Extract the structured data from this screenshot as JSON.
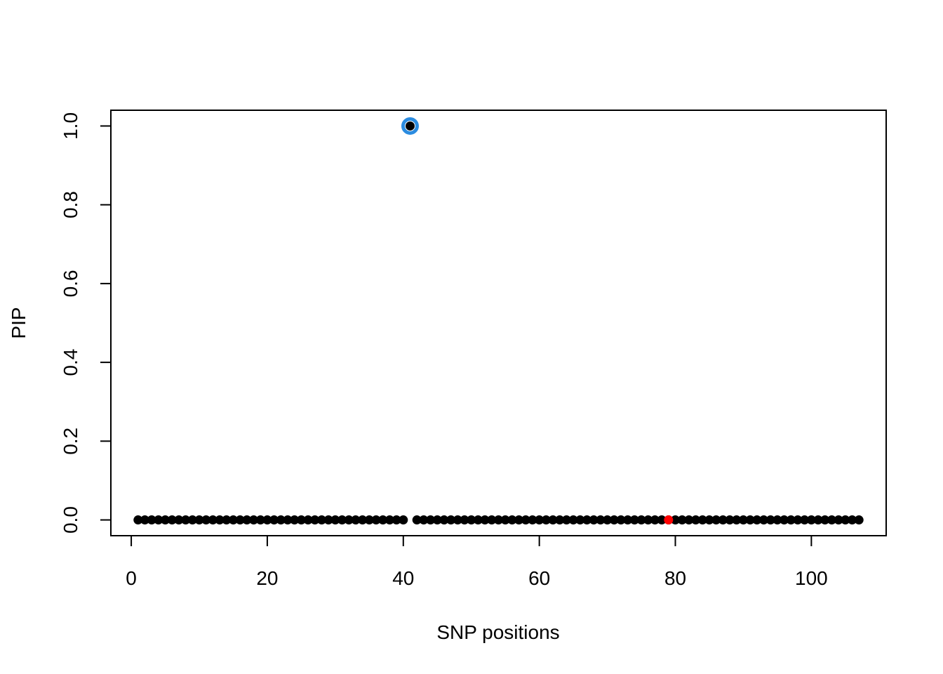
{
  "chart_data": {
    "type": "scatter",
    "title": "",
    "xlabel": "SNP positions",
    "ylabel": "PIP",
    "xlim": [
      -3,
      111
    ],
    "ylim": [
      -0.04,
      1.04
    ],
    "x_ticks": [
      0,
      20,
      40,
      60,
      80,
      100
    ],
    "y_ticks": [
      0.0,
      0.2,
      0.4,
      0.6,
      0.8,
      1.0
    ],
    "x_tick_labels": [
      "0",
      "20",
      "40",
      "60",
      "80",
      "100"
    ],
    "y_tick_labels": [
      "0.0",
      "0.2",
      "0.4",
      "0.6",
      "0.8",
      "1.0"
    ],
    "grid": false,
    "legend": "none",
    "x_start": 1,
    "x_end": 107,
    "y_values": [
      0,
      0,
      0,
      0,
      0,
      0,
      0,
      0,
      0,
      0,
      0,
      0,
      0,
      0,
      0,
      0,
      0,
      0,
      0,
      0,
      0,
      0,
      0,
      0,
      0,
      0,
      0,
      0,
      0,
      0,
      0,
      0,
      0,
      0,
      0,
      0,
      0,
      0,
      0,
      0,
      1,
      0,
      0,
      0,
      0,
      0,
      0,
      0,
      0,
      0,
      0,
      0,
      0,
      0,
      0,
      0,
      0,
      0,
      0,
      0,
      0,
      0,
      0,
      0,
      0,
      0,
      0,
      0,
      0,
      0,
      0,
      0,
      0,
      0,
      0,
      0,
      0,
      0,
      0,
      0,
      0,
      0,
      0,
      0,
      0,
      0,
      0,
      0,
      0,
      0,
      0,
      0,
      0,
      0,
      0,
      0,
      0,
      0,
      0,
      0,
      0,
      0,
      0,
      0,
      0,
      0,
      0
    ],
    "point_color": "#000000",
    "highlight_red": {
      "x": 79,
      "y": 0,
      "color": "#ff0000"
    },
    "highlight_ring": {
      "x": 41,
      "y": 1,
      "color": "#2b8ce0"
    }
  }
}
